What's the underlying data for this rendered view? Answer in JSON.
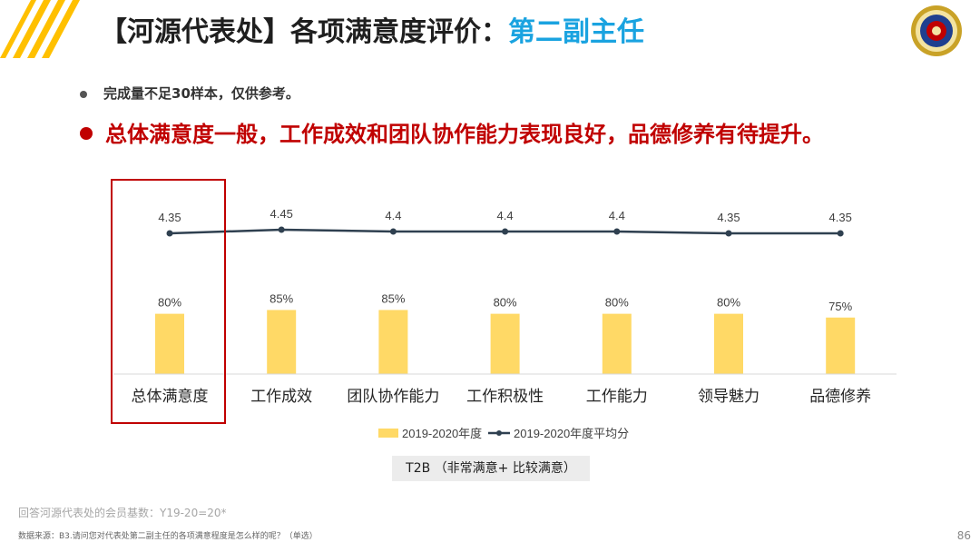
{
  "header": {
    "title_main": "【河源代表处】各项满意度评价：",
    "title_highlight": "第二副主任"
  },
  "bullets": [
    "完成量不足30样本，仅供参考。",
    "总体满意度一般，工作成效和团队协作能力表现良好，品德修养有待提升。"
  ],
  "colors": {
    "bar": "#ffd966",
    "line": "#2f4050",
    "highlight_box": "#c00000",
    "title_accent": "#1aa3e0",
    "stripes": "#ffc000"
  },
  "chart_data": {
    "type": "bar",
    "categories": [
      "总体满意度",
      "工作成效",
      "团队协作能力",
      "工作积极性",
      "工作能力",
      "领导魅力",
      "品德修养"
    ],
    "series": [
      {
        "name": "2019-2020年度",
        "type": "bar",
        "values": [
          80,
          85,
          85,
          80,
          80,
          80,
          75
        ],
        "labels": [
          "80%",
          "85%",
          "85%",
          "80%",
          "80%",
          "80%",
          "75%"
        ]
      },
      {
        "name": "2019-2020年度平均分",
        "type": "line",
        "values": [
          4.35,
          4.45,
          4.4,
          4.4,
          4.4,
          4.35,
          4.35
        ],
        "labels": [
          "4.35",
          "4.45",
          "4.4",
          "4.4",
          "4.4",
          "4.35",
          "4.35"
        ]
      }
    ],
    "highlighted_category": "总体满意度",
    "legend_position": "bottom"
  },
  "t2b_note": "T2B （非常满意+ 比较满意）",
  "footer": {
    "base_note": "回答河源代表处的会员基数：Y19-20=20*",
    "source": "数据来源：B3.请问您对代表处第二副主任的各项满意程度是怎么样的呢？（单选）",
    "page_number": "86"
  }
}
